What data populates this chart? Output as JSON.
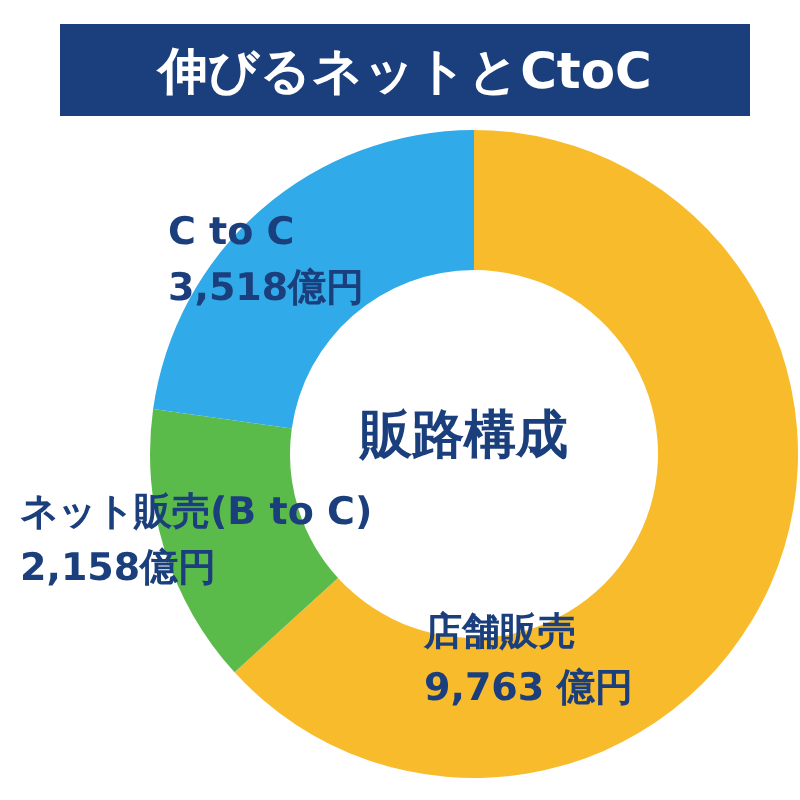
{
  "chart_data": {
    "type": "donut",
    "title": "伸びるネットとCtoC",
    "categories": [
      "店舗販売",
      "ネット販売(B to C)",
      "C to C"
    ],
    "values": [
      9763,
      2158,
      3518
    ],
    "value_labels": [
      "9,763 億円",
      "2,158億円",
      "3,518億円"
    ],
    "colors": [
      "#f8bb2c",
      "#5bbb4a",
      "#30aae8"
    ],
    "annotations": [
      "販路構成"
    ],
    "legend": false
  }
}
